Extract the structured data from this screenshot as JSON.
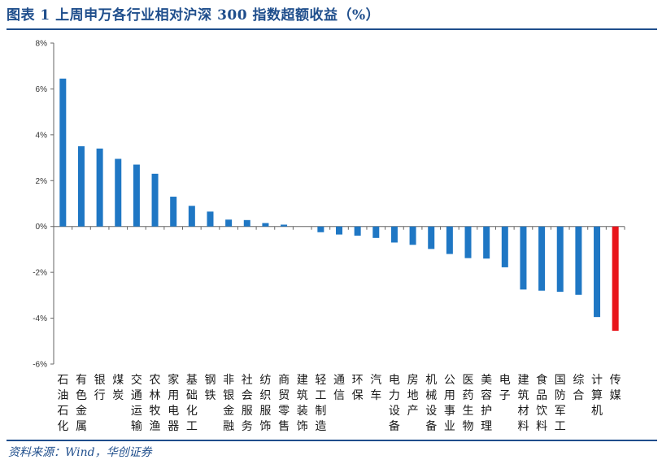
{
  "title": "图表 1   上周申万各行业相对沪深 300 指数超额收益（%）",
  "source": "资料来源：Wind，华创证券",
  "colors": {
    "bar": "#1f77c4",
    "highlight": "#e8141b",
    "accent": "#1f4e8c"
  },
  "chart_data": {
    "type": "bar",
    "title": "上周申万各行业相对沪深 300 指数超额收益（%）",
    "xlabel": "",
    "ylabel": "",
    "ylim": [
      -6,
      8
    ],
    "yticks": [
      "8%",
      "6%",
      "4%",
      "2%",
      "0%",
      "-2%",
      "-4%",
      "-6%"
    ],
    "ytick_values": [
      8,
      6,
      4,
      2,
      0,
      -2,
      -4,
      -6
    ],
    "grid": false,
    "highlight_category": "传媒",
    "categories": [
      "石油石化",
      "有色金属",
      "银行",
      "煤炭",
      "交通运输",
      "农林牧渔",
      "家用电器",
      "基础化工",
      "钢铁",
      "非银金融",
      "社会服务",
      "纺织服饰",
      "商贸零售",
      "建筑装饰",
      "轻工制造",
      "通信",
      "环保",
      "汽车",
      "电力设备",
      "房地产",
      "机械设备",
      "公用事业",
      "医药生物",
      "美容护理",
      "电子",
      "建筑材料",
      "食品饮料",
      "国防军工",
      "综合",
      "计算机",
      "传媒"
    ],
    "values": [
      6.45,
      3.5,
      3.4,
      2.95,
      2.7,
      2.3,
      1.3,
      0.9,
      0.65,
      0.3,
      0.28,
      0.15,
      0.08,
      0.0,
      -0.25,
      -0.35,
      -0.4,
      -0.5,
      -0.7,
      -0.8,
      -0.98,
      -1.2,
      -1.38,
      -1.4,
      -1.78,
      -2.75,
      -2.8,
      -2.85,
      -2.98,
      -3.95,
      -4.55
    ]
  }
}
